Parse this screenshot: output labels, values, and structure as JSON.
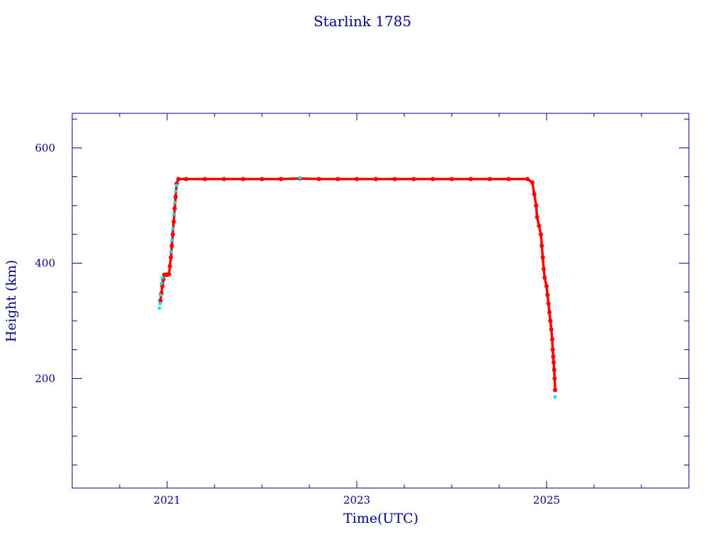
{
  "chart_data": {
    "type": "scatter",
    "title": "Starlink 1785",
    "xlabel": "Time(UTC)",
    "ylabel": "Height (km)",
    "xlim": [
      2020.0,
      2026.5
    ],
    "ylim": [
      10,
      660
    ],
    "x_ticks": [
      {
        "value": 2021,
        "label": "2021"
      },
      {
        "value": 2023,
        "label": "2023"
      },
      {
        "value": 2025,
        "label": "2025"
      }
    ],
    "x_minor_step": 0.5,
    "y_ticks": [
      {
        "value": 200,
        "label": "200"
      },
      {
        "value": 400,
        "label": "400"
      },
      {
        "value": 600,
        "label": "600"
      }
    ],
    "y_minor_step": 50,
    "grid": false,
    "colors": {
      "axis": "#00008b",
      "series_main": "#ff0000",
      "series_secondary": "#00e5ee"
    },
    "series": [
      {
        "role": "main",
        "marker": "star",
        "color": "#ff0000",
        "points": [
          [
            2020.93,
            335
          ],
          [
            2020.94,
            348
          ],
          [
            2020.95,
            360
          ],
          [
            2020.96,
            372
          ],
          [
            2020.97,
            380
          ],
          [
            2020.99,
            380
          ],
          [
            2021.0,
            380
          ],
          [
            2021.02,
            381
          ],
          [
            2021.03,
            395
          ],
          [
            2021.04,
            410
          ],
          [
            2021.05,
            430
          ],
          [
            2021.06,
            450
          ],
          [
            2021.07,
            472
          ],
          [
            2021.08,
            495
          ],
          [
            2021.09,
            515
          ],
          [
            2021.1,
            538
          ],
          [
            2021.12,
            546
          ],
          [
            2021.2,
            546
          ],
          [
            2021.4,
            546
          ],
          [
            2021.6,
            546
          ],
          [
            2021.8,
            546
          ],
          [
            2022.0,
            546
          ],
          [
            2022.2,
            546
          ],
          [
            2022.4,
            547
          ],
          [
            2022.6,
            546
          ],
          [
            2022.8,
            546
          ],
          [
            2023.0,
            546
          ],
          [
            2023.2,
            546
          ],
          [
            2023.4,
            546
          ],
          [
            2023.6,
            546
          ],
          [
            2023.8,
            546
          ],
          [
            2024.0,
            546
          ],
          [
            2024.2,
            546
          ],
          [
            2024.4,
            546
          ],
          [
            2024.6,
            546
          ],
          [
            2024.8,
            546
          ],
          [
            2024.85,
            540
          ],
          [
            2024.87,
            520
          ],
          [
            2024.89,
            500
          ],
          [
            2024.9,
            480
          ],
          [
            2024.92,
            465
          ],
          [
            2024.94,
            450
          ],
          [
            2024.95,
            430
          ],
          [
            2024.96,
            410
          ],
          [
            2024.97,
            390
          ],
          [
            2024.98,
            375
          ],
          [
            2025.0,
            360
          ],
          [
            2025.01,
            345
          ],
          [
            2025.02,
            330
          ],
          [
            2025.03,
            315
          ],
          [
            2025.04,
            300
          ],
          [
            2025.05,
            285
          ],
          [
            2025.06,
            268
          ],
          [
            2025.065,
            250
          ],
          [
            2025.07,
            238
          ],
          [
            2025.075,
            228
          ],
          [
            2025.08,
            215
          ],
          [
            2025.085,
            200
          ],
          [
            2025.09,
            180
          ]
        ]
      },
      {
        "role": "secondary",
        "marker": "dot",
        "color": "#00e5ee",
        "points": [
          [
            2020.92,
            322
          ],
          [
            2020.925,
            330
          ],
          [
            2020.93,
            345
          ],
          [
            2020.94,
            365
          ],
          [
            2020.95,
            375
          ],
          [
            2021.04,
            420
          ],
          [
            2021.05,
            440
          ],
          [
            2021.06,
            460
          ],
          [
            2021.07,
            485
          ],
          [
            2021.08,
            505
          ],
          [
            2021.09,
            525
          ],
          [
            2021.1,
            535
          ],
          [
            2022.4,
            548
          ],
          [
            2025.09,
            168
          ]
        ]
      }
    ]
  }
}
